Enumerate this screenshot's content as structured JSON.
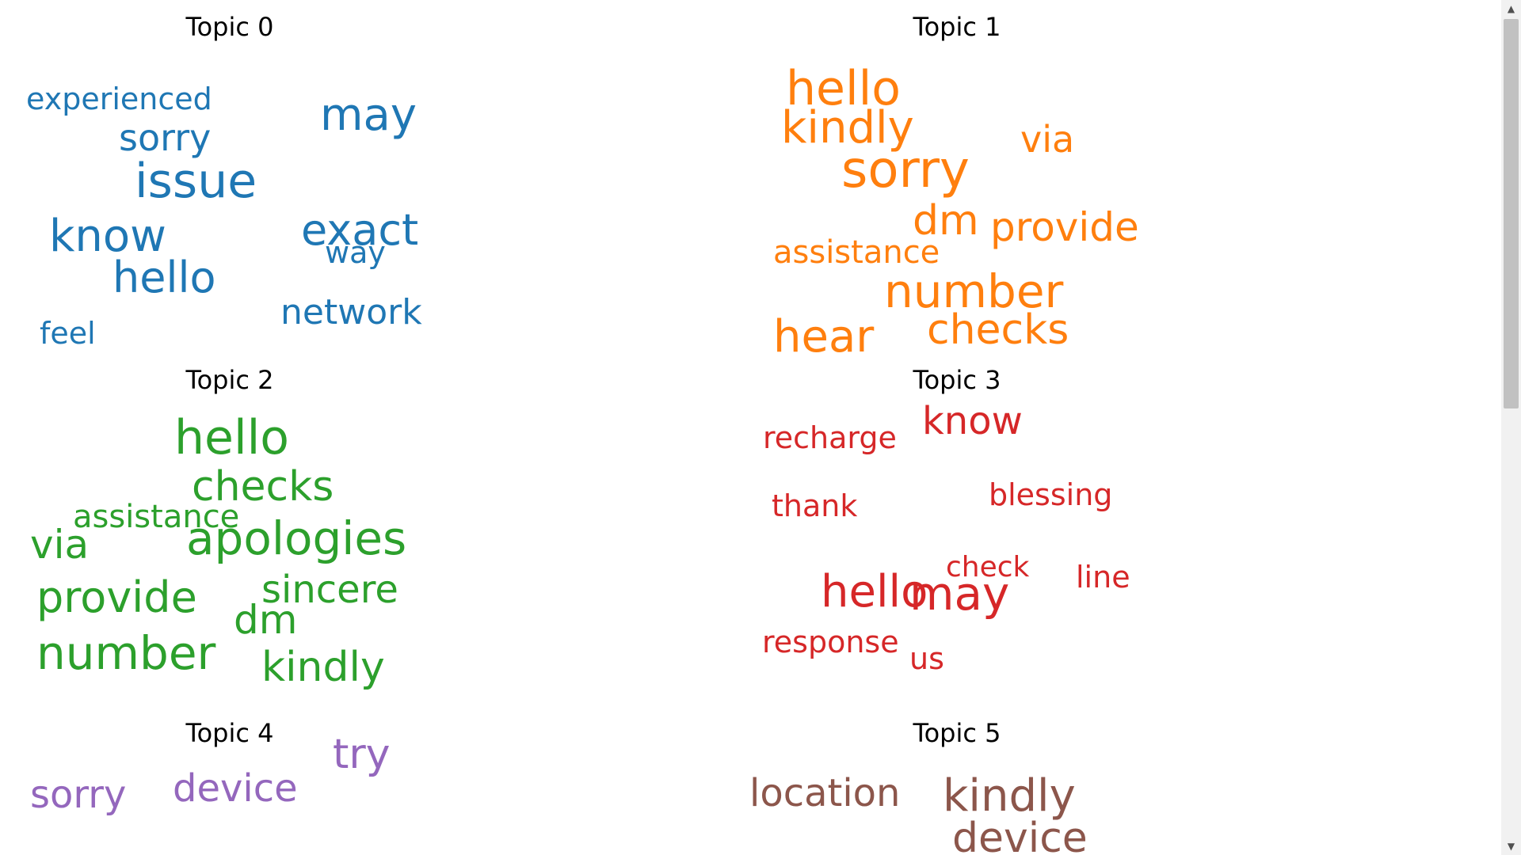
{
  "chart_data": [
    {
      "type": "wordcloud",
      "title": "Topic 0",
      "color": "#1f77b4",
      "words": [
        {
          "text": "issue"
        },
        {
          "text": "may"
        },
        {
          "text": "know"
        },
        {
          "text": "exact"
        },
        {
          "text": "hello"
        },
        {
          "text": "sorry"
        },
        {
          "text": "network"
        },
        {
          "text": "experienced"
        },
        {
          "text": "feel"
        },
        {
          "text": "way"
        }
      ]
    },
    {
      "type": "wordcloud",
      "title": "Topic 1",
      "color": "#ff7f0e",
      "words": [
        {
          "text": "hello"
        },
        {
          "text": "sorry"
        },
        {
          "text": "number"
        },
        {
          "text": "kindly"
        },
        {
          "text": "hear"
        },
        {
          "text": "provide"
        },
        {
          "text": "checks"
        },
        {
          "text": "dm"
        },
        {
          "text": "via"
        },
        {
          "text": "assistance"
        }
      ]
    },
    {
      "type": "wordcloud",
      "title": "Topic 2",
      "color": "#2ca02c",
      "words": [
        {
          "text": "hello"
        },
        {
          "text": "apologies"
        },
        {
          "text": "checks"
        },
        {
          "text": "number"
        },
        {
          "text": "provide"
        },
        {
          "text": "kindly"
        },
        {
          "text": "via"
        },
        {
          "text": "dm"
        },
        {
          "text": "sincere"
        },
        {
          "text": "assistance"
        }
      ]
    },
    {
      "type": "wordcloud",
      "title": "Topic 3",
      "color": "#d62728",
      "words": [
        {
          "text": "hello"
        },
        {
          "text": "may"
        },
        {
          "text": "know"
        },
        {
          "text": "recharge"
        },
        {
          "text": "blessing"
        },
        {
          "text": "thank"
        },
        {
          "text": "response"
        },
        {
          "text": "check"
        },
        {
          "text": "line"
        },
        {
          "text": "us"
        }
      ]
    },
    {
      "type": "wordcloud",
      "title": "Topic 4",
      "color": "#9467bd",
      "words": [
        {
          "text": "try"
        },
        {
          "text": "device"
        },
        {
          "text": "sorry"
        }
      ]
    },
    {
      "type": "wordcloud",
      "title": "Topic 5",
      "color": "#8c564b",
      "words": [
        {
          "text": "kindly"
        },
        {
          "text": "device"
        },
        {
          "text": "location"
        }
      ]
    }
  ]
}
